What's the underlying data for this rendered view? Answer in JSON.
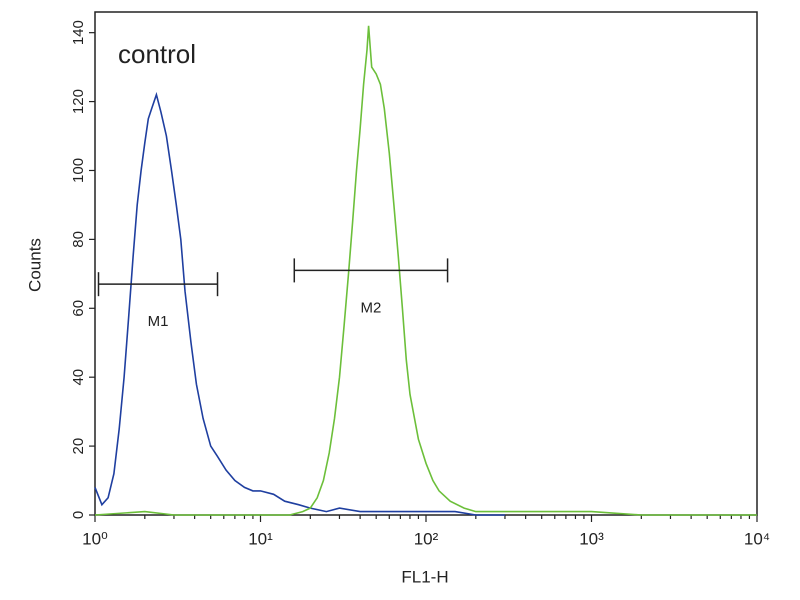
{
  "chart_data": {
    "type": "histogram-overlay",
    "annotation": "control",
    "xlabel": "FL1-H",
    "ylabel": "Counts",
    "log_x": true,
    "xlim": [
      1,
      10000
    ],
    "ylim": [
      0,
      146
    ],
    "xticks": [
      {
        "value": 1,
        "label": "10⁰"
      },
      {
        "value": 10,
        "label": "10¹"
      },
      {
        "value": 100,
        "label": "10²"
      },
      {
        "value": 1000,
        "label": "10³"
      },
      {
        "value": 10000,
        "label": "10⁴"
      }
    ],
    "yticks": [
      0,
      20,
      40,
      60,
      80,
      100,
      120,
      140
    ],
    "series": [
      {
        "color": "#1f3fa0",
        "x": [
          1.0,
          1.1,
          1.2,
          1.3,
          1.4,
          1.5,
          1.6,
          1.7,
          1.8,
          1.9,
          2.0,
          2.1,
          2.2,
          2.35,
          2.5,
          2.7,
          2.9,
          3.1,
          3.3,
          3.5,
          3.8,
          4.1,
          4.5,
          5.0,
          5.5,
          6.2,
          7,
          8,
          9,
          10,
          12,
          14,
          17,
          20,
          25,
          30,
          40,
          60,
          100,
          150,
          200,
          300
        ],
        "values": [
          8,
          3,
          5,
          12,
          25,
          40,
          58,
          75,
          90,
          100,
          108,
          115,
          118,
          122,
          117,
          110,
          100,
          90,
          80,
          65,
          50,
          38,
          28,
          20,
          17,
          13,
          10,
          8,
          7,
          7,
          6,
          4,
          3,
          2,
          1,
          2,
          1,
          1,
          1,
          1,
          0,
          0
        ]
      },
      {
        "color": "#6cbf3a",
        "x": [
          1,
          2,
          3,
          5,
          10,
          15,
          18,
          20,
          22,
          24,
          26,
          28,
          30,
          32,
          34,
          36,
          38,
          40,
          42,
          44,
          45,
          47,
          50,
          53,
          56,
          60,
          64,
          68,
          72,
          76,
          80,
          90,
          100,
          110,
          120,
          140,
          170,
          200,
          300,
          500,
          1000,
          2000,
          5000,
          10000
        ],
        "values": [
          0,
          1,
          0,
          0,
          0,
          0,
          1,
          2,
          5,
          10,
          18,
          28,
          40,
          55,
          70,
          85,
          100,
          112,
          125,
          135,
          142,
          130,
          128,
          125,
          118,
          105,
          90,
          75,
          60,
          45,
          35,
          22,
          15,
          10,
          7,
          4,
          2,
          1,
          1,
          1,
          1,
          0,
          0,
          0
        ]
      }
    ],
    "markers": [
      {
        "label": "M1",
        "range": [
          1.05,
          5.5
        ],
        "y": 67
      },
      {
        "label": "M2",
        "range": [
          16,
          135
        ],
        "y": 71
      }
    ]
  }
}
